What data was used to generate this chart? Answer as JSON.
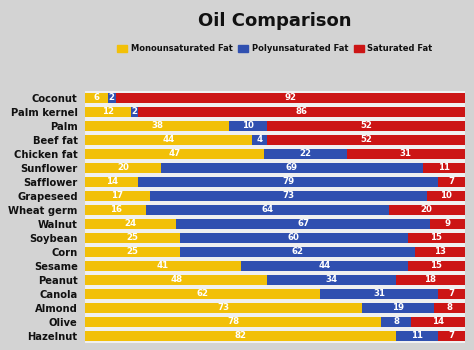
{
  "title": "Oil Comparison",
  "legend_labels": [
    "Monounsaturated Fat",
    "Polyunsaturated Fat",
    "Saturated Fat"
  ],
  "colors": [
    "#F2C008",
    "#3050B0",
    "#CC1515"
  ],
  "oils": [
    "Coconut",
    "Palm kernel",
    "Palm",
    "Beef fat",
    "Chicken fat",
    "Sunflower",
    "Safflower",
    "Grapeseed",
    "Wheat germ",
    "Walnut",
    "Soybean",
    "Corn",
    "Sesame",
    "Peanut",
    "Canola",
    "Almond",
    "Olive",
    "Hazelnut"
  ],
  "mono": [
    6,
    12,
    38,
    44,
    47,
    20,
    14,
    17,
    16,
    24,
    25,
    25,
    41,
    48,
    62,
    73,
    78,
    82
  ],
  "poly": [
    2,
    2,
    10,
    4,
    22,
    69,
    79,
    73,
    64,
    67,
    60,
    62,
    44,
    34,
    31,
    19,
    8,
    11
  ],
  "sat": [
    92,
    86,
    52,
    52,
    31,
    11,
    7,
    10,
    20,
    9,
    15,
    13,
    15,
    18,
    7,
    8,
    14,
    7
  ],
  "background": "#D3D3D3",
  "bar_background": "#F0F0F0",
  "title_fontsize": 13,
  "label_fontsize": 7.2,
  "value_fontsize": 6.2
}
